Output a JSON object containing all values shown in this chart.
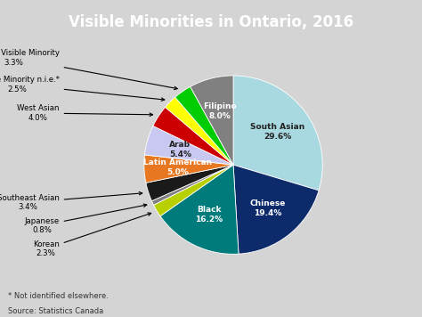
{
  "title": "Visible Minorities in Ontario, 2016",
  "title_bg": "#1e3461",
  "bg_color": "#d4d4d4",
  "footnote1": "* Not identified elsewhere.",
  "footnote2": "Source: Statistics Canada",
  "slices": [
    {
      "label": "South Asian",
      "pct": 29.6,
      "color": "#a8d8e0",
      "label_inside": true,
      "text_color": "#222222"
    },
    {
      "label": "Chinese",
      "pct": 19.4,
      "color": "#0d2b6b",
      "label_inside": true,
      "text_color": "#ffffff"
    },
    {
      "label": "Black",
      "pct": 16.2,
      "color": "#007b7b",
      "label_inside": true,
      "text_color": "#ffffff"
    },
    {
      "label": "Korean",
      "pct": 2.3,
      "color": "#b8d000",
      "label_inside": false,
      "text_color": "#000000"
    },
    {
      "label": "Japanese",
      "pct": 0.8,
      "color": "#7f7f7f",
      "label_inside": false,
      "text_color": "#000000"
    },
    {
      "label": "Southeast Asian",
      "pct": 3.4,
      "color": "#1a1a1a",
      "label_inside": false,
      "text_color": "#000000"
    },
    {
      "label": "Latin American",
      "pct": 5.0,
      "color": "#e87722",
      "label_inside": true,
      "text_color": "#ffffff"
    },
    {
      "label": "Arab",
      "pct": 5.4,
      "color": "#c8c8f0",
      "label_inside": true,
      "text_color": "#222222"
    },
    {
      "label": "West Asian",
      "pct": 4.0,
      "color": "#cc0000",
      "label_inside": false,
      "text_color": "#000000"
    },
    {
      "label": "Visible Minority n.i.e.*",
      "pct": 2.5,
      "color": "#ffff00",
      "label_inside": false,
      "text_color": "#000000"
    },
    {
      "label": "Multiple Visible Minority",
      "pct": 3.3,
      "color": "#00cc00",
      "label_inside": false,
      "text_color": "#000000"
    },
    {
      "label": "Filipino",
      "pct": 8.0,
      "color": "#808080",
      "label_inside": true,
      "text_color": "#ffffff"
    }
  ],
  "outside_labels": {
    "Multiple Visible Minority": {
      "line1": "Multiple Visible Minority",
      "line2": "3.3%"
    },
    "Visible Minority n.i.e.*": {
      "line1": "Visible Minority n.i.e.*",
      "line2": "2.5%"
    },
    "West Asian": {
      "line1": "West Asian",
      "line2": "4.0%"
    },
    "Southeast Asian": {
      "line1": "Southeast Asian",
      "line2": "3.4%"
    },
    "Japanese": {
      "line1": "Japanese",
      "line2": "0.8%"
    },
    "Korean": {
      "line1": "Korean",
      "line2": "2.3%"
    }
  },
  "inside_labels": {
    "South Asian": {
      "line1": "South Asian",
      "line2": "29.6%"
    },
    "Chinese": {
      "line1": "Chinese",
      "line2": "19.4%"
    },
    "Black": {
      "line1": "Black",
      "line2": "16.2%"
    },
    "Latin American": {
      "line1": "Latin American",
      "line2": "5.0%"
    },
    "Arab": {
      "line1": "Arab",
      "line2": "5.4%"
    },
    "Filipino": {
      "line1": "Filipino",
      "line2": "8.0%"
    }
  }
}
